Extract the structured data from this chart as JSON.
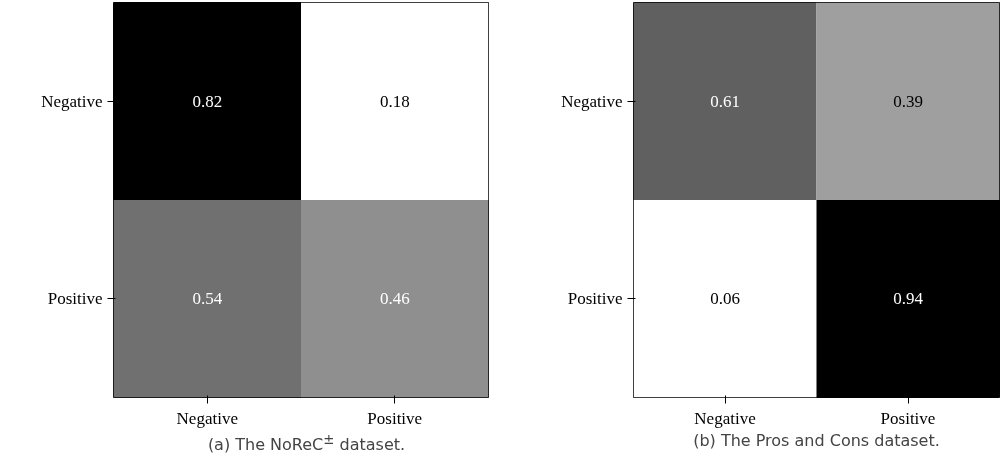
{
  "chart_data": [
    {
      "type": "heatmap",
      "title": "(a) The NoReC$^{±}$ dataset.",
      "categories": [
        "Negative",
        "Positive"
      ],
      "y_categories": [
        "Negative",
        "Positive"
      ],
      "cells": [
        [
          0.82,
          0.18
        ],
        [
          0.54,
          0.46
        ]
      ],
      "data_labels": true,
      "grid": false
    },
    {
      "type": "heatmap",
      "title": "(b) The Pros and Cons dataset.",
      "categories": [
        "Negative",
        "Positive"
      ],
      "y_categories": [
        "Negative",
        "Positive"
      ],
      "cells": [
        [
          0.61,
          0.39
        ],
        [
          0.06,
          0.94
        ]
      ],
      "data_labels": true,
      "grid": false
    }
  ]
}
